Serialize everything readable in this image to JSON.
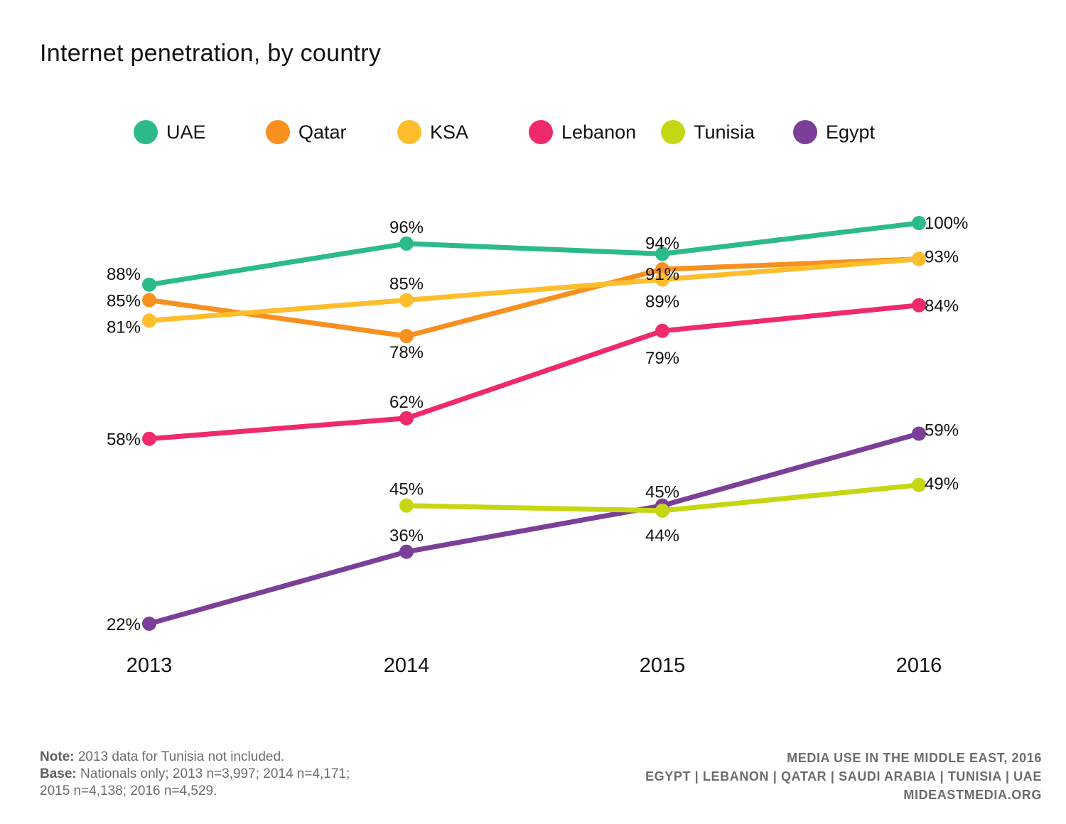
{
  "chart_data": {
    "type": "line",
    "title": "Internet penetration, by country",
    "categories": [
      "2013",
      "2014",
      "2015",
      "2016"
    ],
    "ylim": [
      15,
      105
    ],
    "grid": false,
    "legend": "top",
    "series": [
      {
        "name": "UAE",
        "color": "#2dba8b",
        "values": [
          88,
          96,
          94,
          100
        ],
        "labels": [
          "88%",
          "96%",
          "94%",
          "100%"
        ]
      },
      {
        "name": "Qatar",
        "color": "#f7901e",
        "values": [
          85,
          78,
          91,
          93
        ],
        "labels": [
          "85%",
          "78%",
          "91%",
          "93%"
        ]
      },
      {
        "name": "KSA",
        "color": "#fdbd2c",
        "values": [
          81,
          85,
          89,
          93
        ],
        "labels": [
          "81%",
          "85%",
          "89%",
          ""
        ]
      },
      {
        "name": "Lebanon",
        "color": "#ee2a6b",
        "values": [
          58,
          62,
          79,
          84
        ],
        "labels": [
          "58%",
          "62%",
          "79%",
          "84%"
        ]
      },
      {
        "name": "Tunisia",
        "color": "#c5d613",
        "values": [
          null,
          45,
          44,
          49
        ],
        "labels": [
          "",
          "45%",
          "44%",
          "49%"
        ]
      },
      {
        "name": "Egypt",
        "color": "#7b3f98",
        "values": [
          22,
          36,
          45,
          59
        ],
        "labels": [
          "22%",
          "36%",
          "45%",
          "59%"
        ]
      }
    ]
  },
  "footer": {
    "note_label": "Note:",
    "note_text": "2013 data for Tunisia not included.",
    "base_label": "Base:",
    "base_text_1": "Nationals only; 2013 n=3,997; 2014 n=4,171;",
    "base_text_2": "2015 n=4,138; 2016 n=4,529.",
    "source_1": "MEDIA USE IN THE MIDDLE EAST, 2016",
    "source_2": "EGYPT | LEBANON | QATAR | SAUDI ARABIA | TUNISIA | UAE",
    "source_3": "MIDEASTMEDIA.ORG"
  }
}
